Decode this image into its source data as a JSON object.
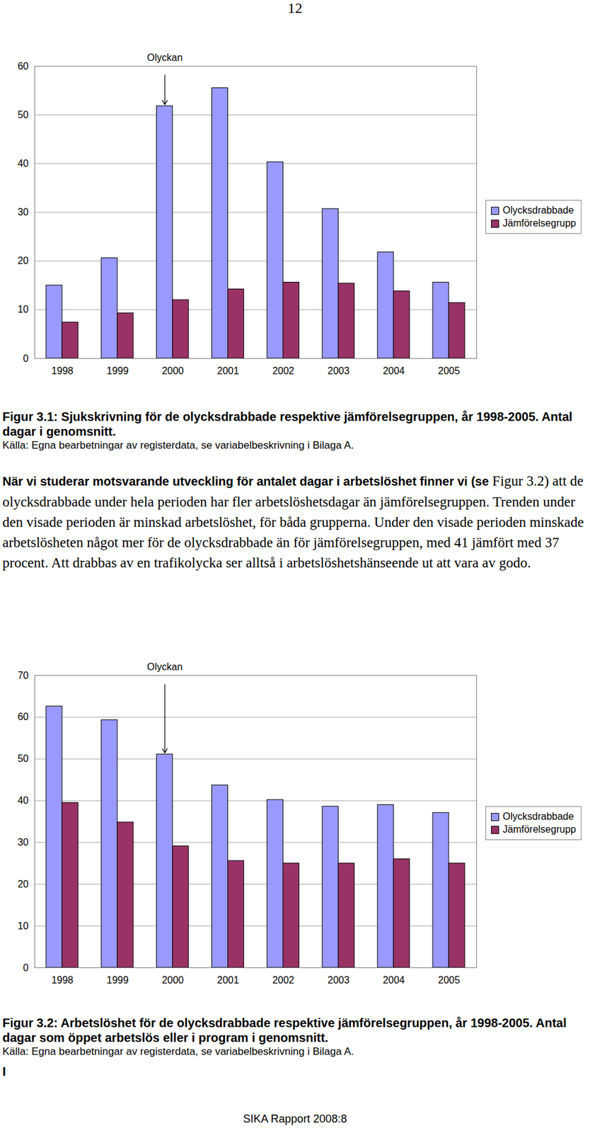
{
  "document": {
    "page_number": "12",
    "paragraph_lead": "När vi studerar motsvarande utveckling för antalet dagar i arbetslöshet finner vi (se",
    "paragraph": "Figur 3.2) att de olycksdrabbade under hela perioden har fler arbetslöshetsdagar än jämförelsegruppen. Trenden under den visade perioden är minskad arbetslöshet, för båda grupperna. Under den visade perioden minskade arbetslösheten något mer för de olycksdrabbade än för jämförelsegruppen, med 41 jämfört med 37 procent. Att drabbas av en trafikolycka ser alltså i arbetslöshetshänseende ut att vara av godo.",
    "stray_text": "I",
    "footer": "SIKA Rapport 2008:8"
  },
  "chart_data": [
    {
      "type": "bar",
      "title": "Figur 3.1: Sjukskrivning för de olycksdrabbade respektive jämförelsegruppen, år 1998-2005. Antal dagar i genomsnitt.",
      "source": "Källa: Egna bearbetningar av registerdata, se variabelbeskrivning i Bilaga A.",
      "categories": [
        "1998",
        "1999",
        "2000",
        "2001",
        "2002",
        "2003",
        "2004",
        "2005"
      ],
      "series": [
        {
          "name": "Olycksdrabbade",
          "color": "#9999ff",
          "values": [
            15.0,
            20.6,
            51.8,
            55.5,
            40.3,
            30.7,
            21.8,
            15.6
          ]
        },
        {
          "name": "Jämförelsegrupp",
          "color": "#993366",
          "values": [
            7.4,
            9.3,
            12.0,
            14.2,
            15.6,
            15.4,
            13.8,
            11.4
          ]
        }
      ],
      "annotation": {
        "text": "Olyckan",
        "category": "2000",
        "series": "Olycksdrabbade"
      },
      "ylim": [
        0,
        60
      ],
      "yticks": [
        0,
        10,
        20,
        30,
        40,
        50,
        60
      ],
      "grid": true,
      "legend": "right"
    },
    {
      "type": "bar",
      "title": "Figur 3.2: Arbetslöshet för de olycksdrabbade respektive jämförelsegruppen, år 1998-2005. Antal dagar som öppet arbetslös eller i program i genomsnitt.",
      "source": "Källa: Egna bearbetningar av registerdata, se variabelbeskrivning i Bilaga A.",
      "categories": [
        "1998",
        "1999",
        "2000",
        "2001",
        "2002",
        "2003",
        "2004",
        "2005"
      ],
      "series": [
        {
          "name": "Olycksdrabbade",
          "color": "#9999ff",
          "values": [
            62.6,
            59.3,
            51.1,
            43.7,
            40.2,
            38.6,
            39.0,
            37.1
          ]
        },
        {
          "name": "Jämförelsegrupp",
          "color": "#993366",
          "values": [
            39.5,
            34.8,
            29.1,
            25.6,
            25.0,
            25.0,
            26.0,
            25.0
          ]
        }
      ],
      "annotation": {
        "text": "Olyckan",
        "category": "2000",
        "series": "Olycksdrabbade"
      },
      "ylim": [
        0,
        70
      ],
      "yticks": [
        0,
        10,
        20,
        30,
        40,
        50,
        60,
        70
      ],
      "grid": true,
      "legend": "right"
    }
  ]
}
